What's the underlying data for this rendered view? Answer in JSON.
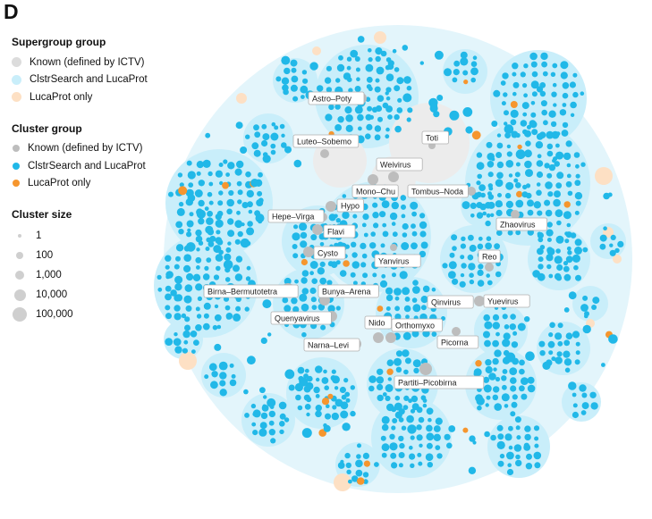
{
  "panel_letter": "D",
  "colors": {
    "supergroup_known": "#dcdcdc",
    "supergroup_both": "#c9eefa",
    "supergroup_lucaprot": "#fde0c4",
    "cluster_known": "#bdbdbd",
    "cluster_both": "#21b8e8",
    "cluster_lucaprot": "#f6962e",
    "background_bubble": "#e3f5fb",
    "size_dot": "#cfcfcf"
  },
  "legend": {
    "supergroup": {
      "title": "Supergroup group",
      "items": [
        {
          "label": "Known (defined by ICTV)",
          "color": "#dcdcdc"
        },
        {
          "label": "ClstrSearch and LucaProt",
          "color": "#c9eefa"
        },
        {
          "label": "LucaProt only",
          "color": "#fde0c4"
        }
      ]
    },
    "cluster": {
      "title": "Cluster group",
      "items": [
        {
          "label": "Known (defined by ICTV)",
          "color": "#bdbdbd"
        },
        {
          "label": "ClstrSearch and LucaProt",
          "color": "#21b8e8"
        },
        {
          "label": "LucaProt only",
          "color": "#f6962e"
        }
      ]
    },
    "size": {
      "title": "Cluster size",
      "items": [
        {
          "label": "1",
          "value": 1
        },
        {
          "label": "100",
          "value": 100
        },
        {
          "label": "1,000",
          "value": 1000
        },
        {
          "label": "10,000",
          "value": 10000
        },
        {
          "label": "100,000",
          "value": 100000
        }
      ]
    }
  },
  "supergroup_labels": [
    "Astro–Poty",
    "Luteo–Sobemo",
    "Toti",
    "Weivirus",
    "Mono–Chu",
    "Tombus–Noda",
    "Hypo",
    "Hepe–Virga",
    "Flavi",
    "Zhaovirus",
    "Cysto",
    "Reo",
    "Yanvirus",
    "Birna–Bermutotetra",
    "Bunya–Arena",
    "Qinvirus",
    "Yuevirus",
    "Quenyavirus",
    "Nido",
    "Orthomyxo",
    "Narna–Levi",
    "Picorna",
    "Partiti–Picobirna"
  ]
}
